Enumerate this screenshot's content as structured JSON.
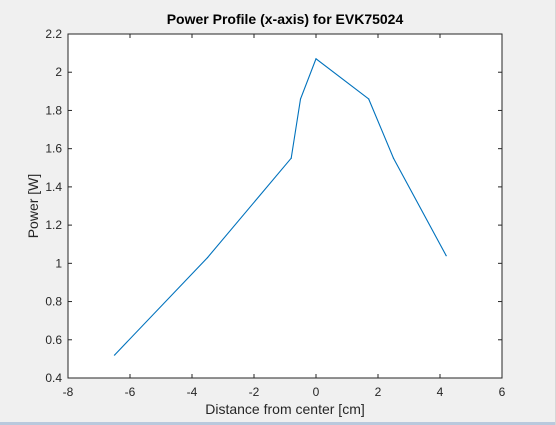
{
  "colors": {
    "figure_bg": "#f0f0f0",
    "axes_bg": "#ffffff",
    "axis": "#262626",
    "line": "#0072bd"
  },
  "chart_data": {
    "type": "line",
    "title": "Power Profile (x-axis) for EVK75024",
    "xlabel": "Distance from center [cm]",
    "ylabel": "Power [W]",
    "xlim": [
      -8,
      6
    ],
    "ylim": [
      0.4,
      2.2
    ],
    "xticks": [
      -8,
      -6,
      -4,
      -2,
      0,
      2,
      4,
      6
    ],
    "xtick_labels": [
      "-8",
      "-6",
      "-4",
      "-2",
      "0",
      "2",
      "4",
      "6"
    ],
    "yticks": [
      0.4,
      0.6,
      0.8,
      1.0,
      1.2,
      1.4,
      1.6,
      1.8,
      2.0,
      2.2
    ],
    "ytick_labels": [
      "0.4",
      "0.6",
      "0.8",
      "1",
      "1.2",
      "1.4",
      "1.6",
      "1.8",
      "2",
      "2.2"
    ],
    "grid": false,
    "series": [
      {
        "x": [
          -6.5,
          -3.5,
          -0.8,
          -0.5,
          0,
          1.7,
          2.5,
          4.2
        ],
        "y": [
          0.52,
          1.03,
          1.55,
          1.86,
          2.07,
          1.86,
          1.55,
          1.04
        ]
      }
    ]
  }
}
